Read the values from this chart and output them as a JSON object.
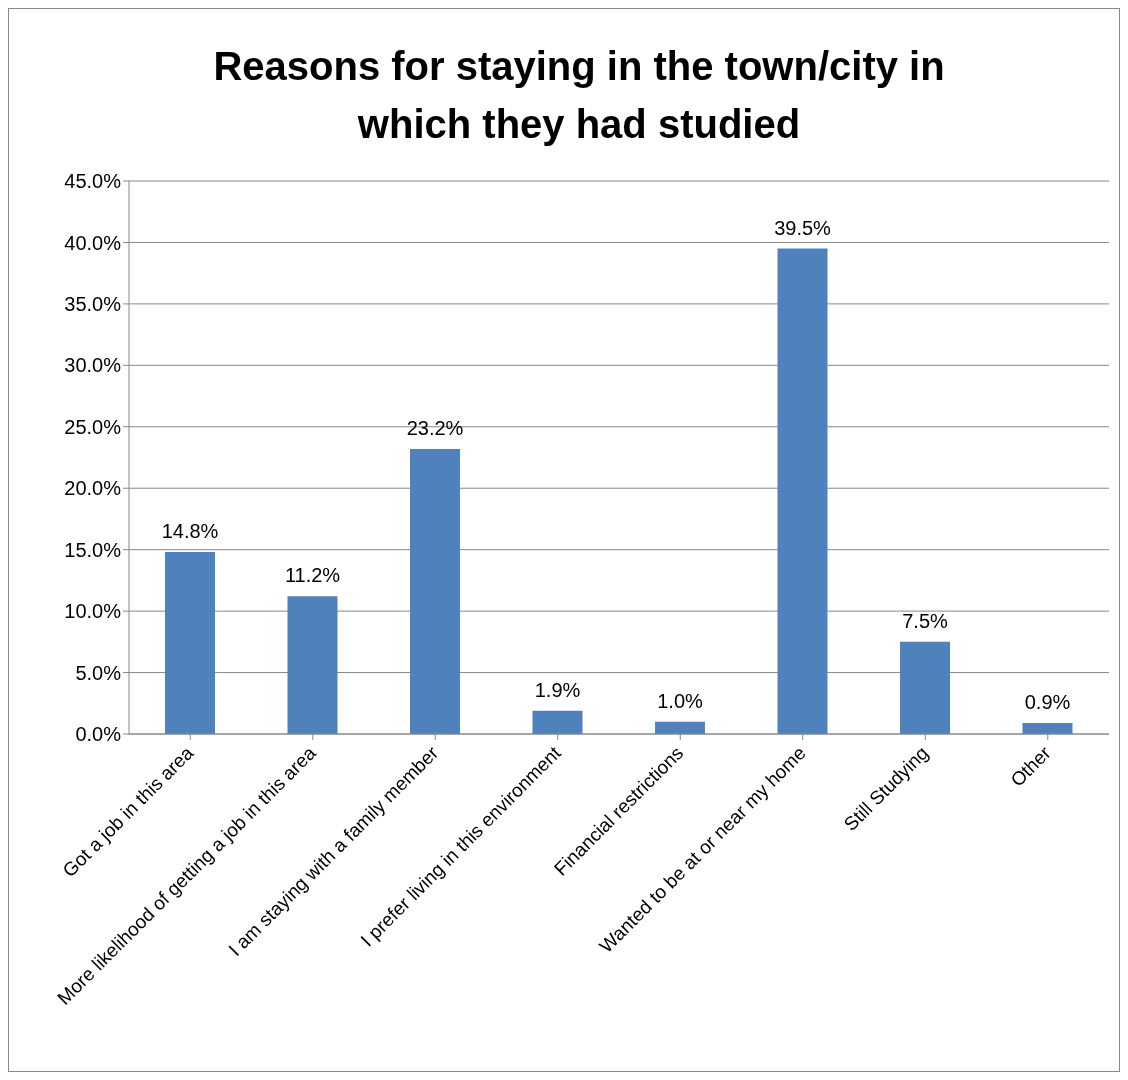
{
  "chart_data": {
    "type": "bar",
    "title": "Reasons for staying in the town/city in which they had studied",
    "categories": [
      "Got a job in this area",
      "More likelihood of getting a job in this area",
      "I am staying with a family member",
      "I prefer living in this environment",
      "Financial restrictions",
      "Wanted to be at or near my home",
      "Still Studying",
      "Other"
    ],
    "values": [
      14.8,
      11.2,
      23.2,
      1.9,
      1.0,
      39.5,
      7.5,
      0.9
    ],
    "value_labels": [
      "14.8%",
      "11.2%",
      "23.2%",
      "1.9%",
      "1.0%",
      "39.5%",
      "7.5%",
      "0.9%"
    ],
    "color": "#4f81bd",
    "ylim": [
      0,
      45
    ],
    "yticks": [
      {
        "value": 0,
        "label": "0.0%"
      },
      {
        "value": 5,
        "label": "5.0%"
      },
      {
        "value": 10,
        "label": "10.0%"
      },
      {
        "value": 15,
        "label": "15.0%"
      },
      {
        "value": 20,
        "label": "20.0%"
      },
      {
        "value": 25,
        "label": "25.0%"
      },
      {
        "value": 30,
        "label": "30.0%"
      },
      {
        "value": 35,
        "label": "35.0%"
      },
      {
        "value": 40,
        "label": "40.0%"
      },
      {
        "value": 45,
        "label": "45.0%"
      }
    ],
    "grid": "y"
  }
}
